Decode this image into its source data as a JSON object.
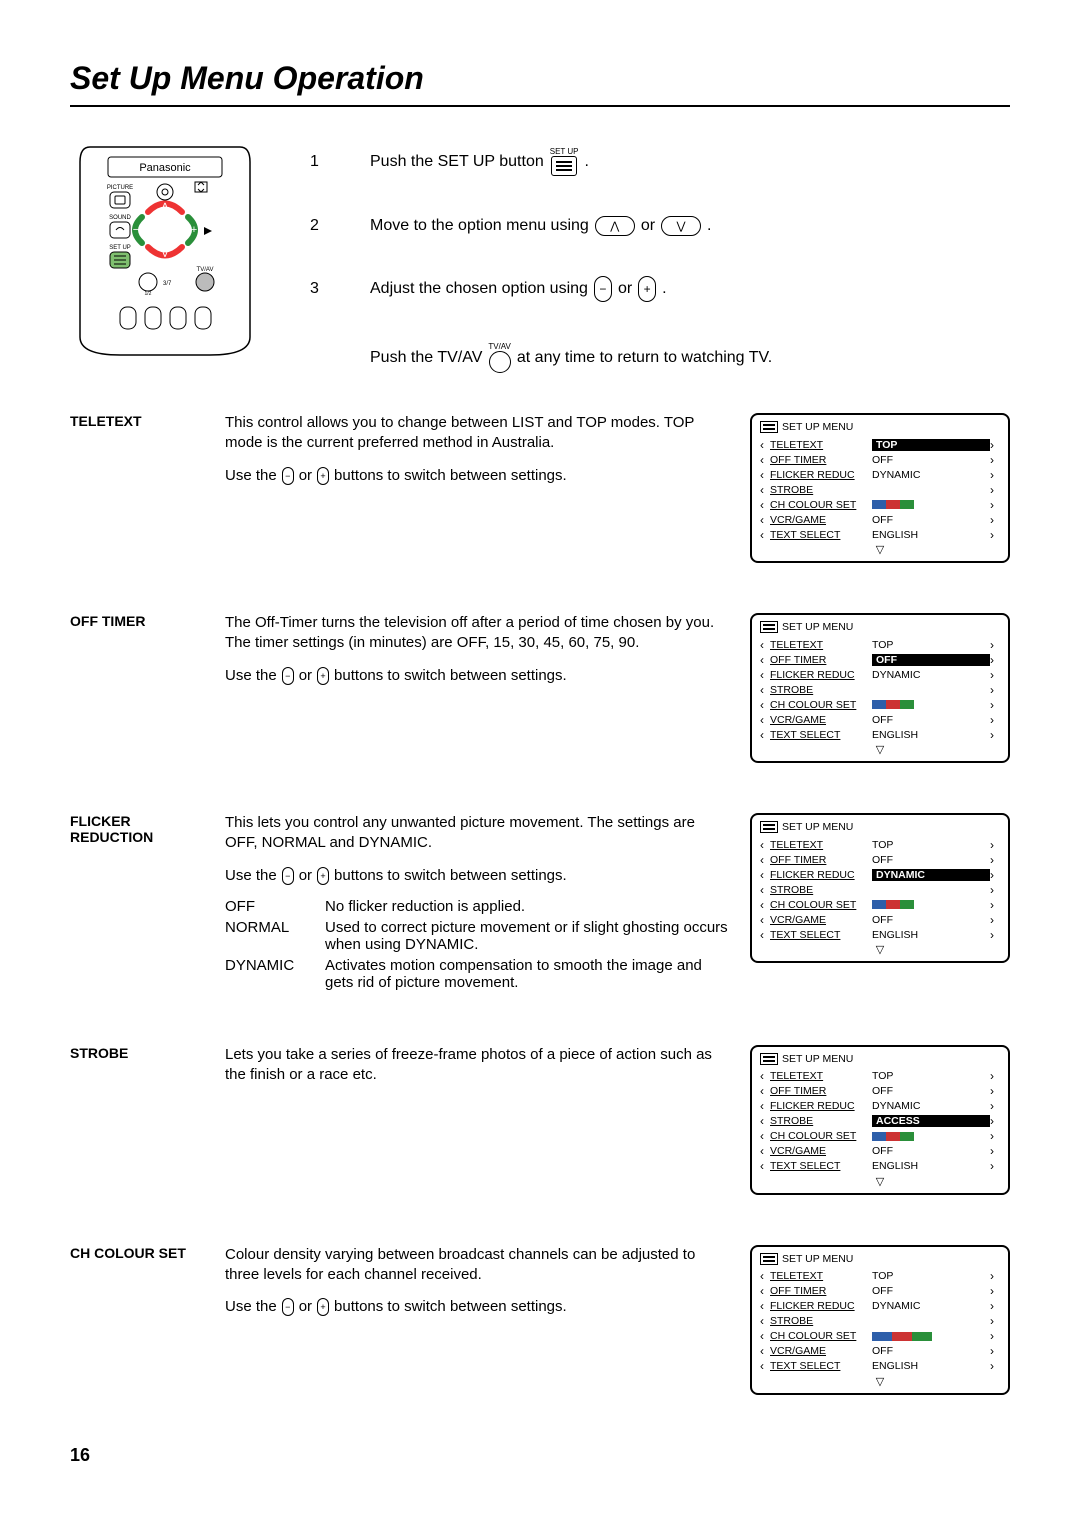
{
  "page": {
    "title": "Set Up Menu Operation",
    "number": "16"
  },
  "remote": {
    "brand": "Panasonic",
    "labels": {
      "picture": "PICTURE",
      "sound": "SOUND",
      "setup": "SET UP",
      "tvav": "TV/AV",
      "ntext": "1/2\n3/7"
    }
  },
  "instructions": {
    "i1": {
      "num": "1",
      "a": "Push the SET UP button",
      "b": ".",
      "iconlabel": "SET UP"
    },
    "i2": {
      "num": "2",
      "a": "Move to the option menu using",
      "or": "or",
      "b": "."
    },
    "i3": {
      "num": "3",
      "a": "Adjust the chosen option using",
      "or": "or",
      "b": "."
    },
    "i4": {
      "a": "Push the TV/AV",
      "iconlabel": "TV/AV",
      "b": "at any time to return to watching TV."
    }
  },
  "osd_common": {
    "title": "SET UP MENU",
    "labels": {
      "teletext": "TELETEXT",
      "offtimer": "OFF TIMER",
      "flicker": "FLICKER REDUC",
      "strobe": "STROBE",
      "colour": "CH COLOUR SET",
      "vcr": "VCR/GAME",
      "text": "TEXT SELECT"
    },
    "values": {
      "top": "TOP",
      "off": "OFF",
      "dynamic": "DYNAMIC",
      "access": "ACCESS",
      "english": "ENGLISH"
    }
  },
  "colourbar_colors": [
    "#2e5faa",
    "#c33",
    "#2a8f3a"
  ],
  "sections": {
    "teletext": {
      "label": "TELETEXT",
      "body1": "This control allows you to change between LIST and TOP modes. TOP mode is the current preferred method in Australia.",
      "use_a": "Use the",
      "use_or": "or",
      "use_b": "buttons to switch between settings.",
      "highlight": "teletext"
    },
    "offtimer": {
      "label": "OFF TIMER",
      "body1": "The Off-Timer turns the television off after a period of time chosen by you. The timer settings (in minutes) are OFF, 15, 30, 45, 60, 75, 90.",
      "use_a": "Use the",
      "use_or": "or",
      "use_b": "buttons to switch between settings.",
      "highlight": "offtimer"
    },
    "flicker": {
      "label1": "FLICKER",
      "label2": "REDUCTION",
      "body1": "This lets you control any unwanted picture movement. The settings are OFF, NORMAL and DYNAMIC.",
      "use_a": "Use the",
      "use_or": "or",
      "use_b": "buttons to switch between settings.",
      "highlight": "flicker",
      "opts": {
        "o1": {
          "k": "OFF",
          "v": "No flicker reduction is applied."
        },
        "o2": {
          "k": "NORMAL",
          "v": "Used to correct picture movement or if slight ghosting occurs when using DYNAMIC."
        },
        "o3": {
          "k": "DYNAMIC",
          "v": "Activates motion compensation to smooth the image and gets rid of picture movement."
        }
      }
    },
    "strobe": {
      "label": "STROBE",
      "body1": "Lets you take a series of freeze-frame photos of a piece of action such as the finish or a race etc.",
      "highlight": "strobe"
    },
    "colour": {
      "label": "CH COLOUR SET",
      "body1": "Colour density varying between broadcast channels can be adjusted to three levels for each channel received.",
      "use_a": "Use the",
      "use_or": "or",
      "use_b": "buttons to switch between settings.",
      "highlight": "colour"
    }
  }
}
